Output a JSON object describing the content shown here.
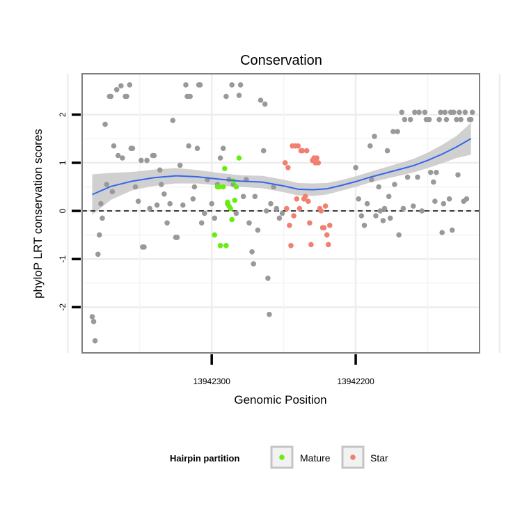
{
  "chart_data": {
    "type": "scatter",
    "title": "Conservation",
    "xlabel": "Genomic Position",
    "ylabel": "phyloP LRT conservation scores",
    "x_reversed": true,
    "xlim": [
      13942390,
      13942114
    ],
    "ylim": [
      -2.95,
      2.85
    ],
    "x_ticks": [
      13942300,
      13942200
    ],
    "x_tick_labels": [
      "13942300",
      "13942200"
    ],
    "y_ticks": [
      -2,
      -1,
      0,
      1,
      2
    ],
    "y_tick_labels": [
      "-2",
      "-1",
      "0",
      "1",
      "2"
    ],
    "grid": true,
    "reference_line": {
      "y": 0,
      "style": "dashed"
    },
    "legend": {
      "title": "Hairpin partition",
      "placement": "bottom",
      "entries": [
        {
          "name": "Mature",
          "color": "#66ee11"
        },
        {
          "name": "Star",
          "color": "#f08070"
        }
      ]
    },
    "colors": {
      "Other": "#999999",
      "Mature": "#66ee11",
      "Star": "#f08070",
      "trend": "#3366ee",
      "band": "#c8c8c8"
    },
    "series": [
      {
        "name": "Other",
        "points": [
          [
            13942383,
            -2.2
          ],
          [
            13942382,
            -2.3
          ],
          [
            13942381,
            -2.7
          ],
          [
            13942379,
            -0.9
          ],
          [
            13942378,
            -0.5
          ],
          [
            13942377,
            0.15
          ],
          [
            13942376,
            -0.15
          ],
          [
            13942374,
            1.8
          ],
          [
            13942373,
            0.55
          ],
          [
            13942371,
            2.38
          ],
          [
            13942370,
            2.38
          ],
          [
            13942369,
            0.4
          ],
          [
            13942368,
            1.35
          ],
          [
            13942366,
            2.52
          ],
          [
            13942365,
            1.15
          ],
          [
            13942363,
            2.6
          ],
          [
            13942362,
            1.1
          ],
          [
            13942360,
            2.38
          ],
          [
            13942359,
            2.38
          ],
          [
            13942357,
            2.62
          ],
          [
            13942356,
            1.3
          ],
          [
            13942355,
            1.3
          ],
          [
            13942353,
            0.5
          ],
          [
            13942351,
            0.2
          ],
          [
            13942349,
            1.05
          ],
          [
            13942348,
            -0.75
          ],
          [
            13942347,
            -0.75
          ],
          [
            13942345,
            1.05
          ],
          [
            13942343,
            0.05
          ],
          [
            13942341,
            1.15
          ],
          [
            13942340,
            1.15
          ],
          [
            13942338,
            0.12
          ],
          [
            13942336,
            0.85
          ],
          [
            13942335,
            0.55
          ],
          [
            13942333,
            0.35
          ],
          [
            13942331,
            -0.25
          ],
          [
            13942329,
            0.15
          ],
          [
            13942327,
            1.88
          ],
          [
            13942325,
            -0.55
          ],
          [
            13942324,
            -0.55
          ],
          [
            13942322,
            0.95
          ],
          [
            13942320,
            0.12
          ],
          [
            13942318,
            2.62
          ],
          [
            13942317,
            2.38
          ],
          [
            13942316,
            1.35
          ],
          [
            13942315,
            2.38
          ],
          [
            13942313,
            0.25
          ],
          [
            13942312,
            0.5
          ],
          [
            13942310,
            1.3
          ],
          [
            13942309,
            2.62
          ],
          [
            13942308,
            2.62
          ],
          [
            13942307,
            -0.25
          ],
          [
            13942305,
            -0.05
          ],
          [
            13942303,
            0.65
          ],
          [
            13942300,
            0.15
          ],
          [
            13942298,
            -0.15
          ],
          [
            13942296,
            0.55
          ],
          [
            13942294,
            1.1
          ],
          [
            13942292,
            1.3
          ],
          [
            13942290,
            2.38
          ],
          [
            13942289,
            0.15
          ],
          [
            13942288,
            0.65
          ],
          [
            13942286,
            2.62
          ],
          [
            13942285,
            0.55
          ],
          [
            13942283,
            -0.05
          ],
          [
            13942281,
            2.4
          ],
          [
            13942280,
            2.62
          ],
          [
            13942278,
            0.3
          ],
          [
            13942276,
            0.65
          ],
          [
            13942274,
            -0.25
          ],
          [
            13942272,
            -0.85
          ],
          [
            13942271,
            -1.1
          ],
          [
            13942270,
            0.3
          ],
          [
            13942268,
            -0.4
          ],
          [
            13942266,
            2.3
          ],
          [
            13942264,
            1.25
          ],
          [
            13942263,
            2.22
          ],
          [
            13942262,
            0.0
          ],
          [
            13942261,
            -1.4
          ],
          [
            13942260,
            -2.15
          ],
          [
            13942259,
            0.15
          ],
          [
            13942257,
            0.5
          ],
          [
            13942255,
            0.05
          ],
          [
            13942253,
            -0.15
          ],
          [
            13942251,
            -0.05
          ],
          [
            13942200,
            0.9
          ],
          [
            13942198,
            0.25
          ],
          [
            13942196,
            -0.1
          ],
          [
            13942194,
            -0.3
          ],
          [
            13942192,
            0.15
          ],
          [
            13942190,
            1.35
          ],
          [
            13942189,
            0.65
          ],
          [
            13942187,
            1.55
          ],
          [
            13942186,
            -0.1
          ],
          [
            13942184,
            0.5
          ],
          [
            13942183,
            0.0
          ],
          [
            13942181,
            -0.2
          ],
          [
            13942180,
            0.05
          ],
          [
            13942178,
            1.25
          ],
          [
            13942177,
            0.3
          ],
          [
            13942176,
            -0.15
          ],
          [
            13942174,
            1.65
          ],
          [
            13942173,
            0.55
          ],
          [
            13942171,
            1.65
          ],
          [
            13942170,
            -0.5
          ],
          [
            13942168,
            2.05
          ],
          [
            13942167,
            0.05
          ],
          [
            13942166,
            1.9
          ],
          [
            13942164,
            0.7
          ],
          [
            13942162,
            1.9
          ],
          [
            13942160,
            0.1
          ],
          [
            13942159,
            2.05
          ],
          [
            13942157,
            0.7
          ],
          [
            13942156,
            2.05
          ],
          [
            13942154,
            0.0
          ],
          [
            13942152,
            2.05
          ],
          [
            13942151,
            1.9
          ],
          [
            13942149,
            1.9
          ],
          [
            13942148,
            0.8
          ],
          [
            13942146,
            0.6
          ],
          [
            13942145,
            0.2
          ],
          [
            13942144,
            0.8
          ],
          [
            13942142,
            1.9
          ],
          [
            13942141,
            2.05
          ],
          [
            13942140,
            -0.45
          ],
          [
            13942139,
            0.15
          ],
          [
            13942138,
            2.05
          ],
          [
            13942137,
            1.9
          ],
          [
            13942135,
            0.25
          ],
          [
            13942134,
            2.05
          ],
          [
            13942133,
            -0.4
          ],
          [
            13942132,
            2.05
          ],
          [
            13942130,
            1.9
          ],
          [
            13942129,
            0.75
          ],
          [
            13942128,
            2.05
          ],
          [
            13942127,
            1.9
          ],
          [
            13942125,
            0.2
          ],
          [
            13942124,
            2.05
          ],
          [
            13942123,
            0.25
          ],
          [
            13942121,
            1.9
          ],
          [
            13942120,
            1.9
          ],
          [
            13942119,
            2.05
          ]
        ]
      },
      {
        "name": "Mature",
        "points": [
          [
            13942298,
            -0.5
          ],
          [
            13942296,
            0.5
          ],
          [
            13942295,
            0.5
          ],
          [
            13942294,
            -0.72
          ],
          [
            13942292,
            0.5
          ],
          [
            13942291,
            0.88
          ],
          [
            13942290,
            -0.72
          ],
          [
            13942289,
            0.18
          ],
          [
            13942288,
            0.1
          ],
          [
            13942287,
            0.05
          ],
          [
            13942286,
            -0.18
          ],
          [
            13942285,
            0.62
          ],
          [
            13942284,
            0.22
          ],
          [
            13942283,
            0.5
          ],
          [
            13942281,
            1.1
          ]
        ]
      },
      {
        "name": "Star",
        "points": [
          [
            13942249,
            1.0
          ],
          [
            13942248,
            0.05
          ],
          [
            13942247,
            0.9
          ],
          [
            13942246,
            -0.3
          ],
          [
            13942245,
            -0.72
          ],
          [
            13942244,
            1.35
          ],
          [
            13942243,
            -0.1
          ],
          [
            13942242,
            1.35
          ],
          [
            13942241,
            0.25
          ],
          [
            13942240,
            1.35
          ],
          [
            13942239,
            0.05
          ],
          [
            13942238,
            1.25
          ],
          [
            13942237,
            1.25
          ],
          [
            13942236,
            0.25
          ],
          [
            13942235,
            0.3
          ],
          [
            13942234,
            1.25
          ],
          [
            13942233,
            0.2
          ],
          [
            13942232,
            -0.25
          ],
          [
            13942231,
            -0.7
          ],
          [
            13942230,
            1.05
          ],
          [
            13942229,
            1.1
          ],
          [
            13942228,
            1.0
          ],
          [
            13942227,
            1.1
          ],
          [
            13942226,
            1.0
          ],
          [
            13942225,
            0.05
          ],
          [
            13942224,
            0.0
          ],
          [
            13942223,
            -0.35
          ],
          [
            13942222,
            -0.35
          ],
          [
            13942221,
            0.1
          ],
          [
            13942220,
            -0.5
          ],
          [
            13942219,
            -0.7
          ],
          [
            13942218,
            -0.3
          ]
        ]
      }
    ],
    "trend": {
      "x": [
        13942383,
        13942370,
        13942355,
        13942340,
        13942325,
        13942310,
        13942295,
        13942280,
        13942265,
        13942250,
        13942240,
        13942230,
        13942220,
        13942210,
        13942200,
        13942190,
        13942180,
        13942170,
        13942160,
        13942150,
        13942140,
        13942130,
        13942120
      ],
      "y": [
        0.34,
        0.51,
        0.62,
        0.69,
        0.73,
        0.71,
        0.66,
        0.62,
        0.6,
        0.52,
        0.45,
        0.44,
        0.46,
        0.53,
        0.61,
        0.7,
        0.78,
        0.86,
        0.94,
        1.05,
        1.18,
        1.33,
        1.5
      ],
      "band_lower": [
        -0.08,
        0.23,
        0.43,
        0.52,
        0.57,
        0.57,
        0.53,
        0.5,
        0.47,
        0.39,
        0.32,
        0.31,
        0.34,
        0.42,
        0.5,
        0.59,
        0.66,
        0.73,
        0.8,
        0.89,
        0.99,
        1.1,
        1.17
      ],
      "band_upper": [
        0.76,
        0.79,
        0.81,
        0.86,
        0.89,
        0.85,
        0.79,
        0.74,
        0.73,
        0.65,
        0.58,
        0.57,
        0.58,
        0.64,
        0.72,
        0.81,
        0.9,
        0.99,
        1.08,
        1.21,
        1.37,
        1.56,
        1.83
      ]
    }
  }
}
